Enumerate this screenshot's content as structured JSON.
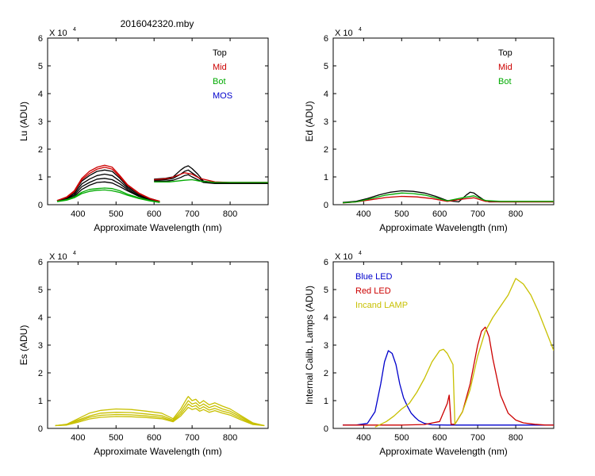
{
  "figure_title": "2016042320.mby",
  "colors": {
    "black": "#000000",
    "red": "#cc0000",
    "green": "#00aa00",
    "blue": "#0000cc",
    "olive": "#c8c000",
    "frame": "#000000"
  },
  "chart_data": [
    {
      "id": "lu",
      "type": "line",
      "ylabel": "Lu (ADU)",
      "xlabel": "Approximate Wavelength (nm)",
      "multiplier_text": "X 10",
      "multiplier_exp": "4",
      "xlim": [
        320,
        900
      ],
      "ylim": [
        0,
        6
      ],
      "xticks": [
        400,
        500,
        600,
        700,
        800
      ],
      "yticks": [
        0,
        1,
        2,
        3,
        4,
        5,
        6
      ],
      "legend_position": "top-right",
      "legend": [
        {
          "label": "Top",
          "color": "#000000"
        },
        {
          "label": "Mid",
          "color": "#cc0000"
        },
        {
          "label": "Bot",
          "color": "#00aa00"
        },
        {
          "label": "MOS",
          "color": "#0000cc"
        }
      ],
      "series": [
        {
          "name": "Top-1",
          "color": "#000000",
          "x": [
            345,
            370,
            390,
            410,
            430,
            450,
            470,
            490,
            510,
            530,
            560,
            590,
            615
          ],
          "y": [
            0.15,
            0.25,
            0.45,
            0.85,
            1.05,
            1.2,
            1.25,
            1.2,
            0.95,
            0.65,
            0.4,
            0.22,
            0.12
          ]
        },
        {
          "name": "Top-2",
          "color": "#000000",
          "x": [
            345,
            370,
            390,
            410,
            430,
            450,
            470,
            490,
            510,
            530,
            560,
            590,
            615
          ],
          "y": [
            0.14,
            0.22,
            0.4,
            0.75,
            0.92,
            1.05,
            1.1,
            1.05,
            0.85,
            0.6,
            0.36,
            0.2,
            0.11
          ]
        },
        {
          "name": "Top-3",
          "color": "#000000",
          "x": [
            345,
            370,
            390,
            410,
            430,
            450,
            470,
            490,
            510,
            530,
            560,
            590,
            615
          ],
          "y": [
            0.13,
            0.2,
            0.35,
            0.65,
            0.8,
            0.92,
            0.95,
            0.9,
            0.75,
            0.55,
            0.32,
            0.18,
            0.1
          ]
        },
        {
          "name": "Top-4",
          "color": "#000000",
          "x": [
            345,
            370,
            390,
            410,
            430,
            450,
            470,
            490,
            510,
            530,
            560,
            590,
            615
          ],
          "y": [
            0.12,
            0.18,
            0.3,
            0.55,
            0.7,
            0.8,
            0.82,
            0.78,
            0.65,
            0.5,
            0.3,
            0.16,
            0.09
          ]
        },
        {
          "name": "Top-r1",
          "color": "#000000",
          "x": [
            600,
            630,
            650,
            670,
            680,
            690,
            700,
            715,
            730,
            760,
            800,
            850,
            900
          ],
          "y": [
            0.92,
            0.95,
            1.0,
            1.25,
            1.35,
            1.4,
            1.3,
            1.1,
            0.85,
            0.8,
            0.8,
            0.8,
            0.8
          ]
        },
        {
          "name": "Top-r2",
          "color": "#000000",
          "x": [
            600,
            630,
            650,
            670,
            680,
            690,
            700,
            715,
            730,
            760,
            800,
            850,
            900
          ],
          "y": [
            0.88,
            0.9,
            0.95,
            1.1,
            1.2,
            1.25,
            1.15,
            1.0,
            0.82,
            0.78,
            0.78,
            0.78,
            0.78
          ]
        },
        {
          "name": "Top-r3",
          "color": "#000000",
          "x": [
            600,
            630,
            650,
            670,
            680,
            690,
            700,
            715,
            730,
            760,
            800,
            850,
            900
          ],
          "y": [
            0.85,
            0.85,
            0.88,
            0.98,
            1.05,
            1.08,
            1.0,
            0.9,
            0.8,
            0.76,
            0.76,
            0.76,
            0.76
          ]
        },
        {
          "name": "Mid-1",
          "color": "#cc0000",
          "x": [
            345,
            370,
            390,
            410,
            430,
            450,
            470,
            490,
            510,
            530,
            560,
            590,
            615
          ],
          "y": [
            0.15,
            0.28,
            0.5,
            0.95,
            1.2,
            1.35,
            1.42,
            1.35,
            1.05,
            0.72,
            0.42,
            0.22,
            0.12
          ]
        },
        {
          "name": "Mid-2",
          "color": "#cc0000",
          "x": [
            345,
            370,
            390,
            410,
            430,
            450,
            470,
            490,
            510,
            530,
            560,
            590,
            615
          ],
          "y": [
            0.15,
            0.26,
            0.46,
            0.9,
            1.12,
            1.28,
            1.35,
            1.28,
            1.0,
            0.7,
            0.4,
            0.21,
            0.12
          ]
        },
        {
          "name": "Mid-r",
          "color": "#cc0000",
          "x": [
            600,
            640,
            660,
            680,
            700,
            720,
            760,
            800,
            900
          ],
          "y": [
            0.9,
            0.95,
            1.05,
            1.15,
            1.1,
            0.95,
            0.82,
            0.8,
            0.8
          ]
        },
        {
          "name": "Bot-1",
          "color": "#00aa00",
          "x": [
            345,
            370,
            390,
            410,
            430,
            450,
            470,
            490,
            510,
            530,
            560,
            590,
            615
          ],
          "y": [
            0.12,
            0.18,
            0.28,
            0.45,
            0.55,
            0.58,
            0.6,
            0.58,
            0.5,
            0.38,
            0.25,
            0.15,
            0.09
          ]
        },
        {
          "name": "Bot-2",
          "color": "#00aa00",
          "x": [
            345,
            370,
            390,
            410,
            430,
            450,
            470,
            490,
            510,
            530,
            560,
            590,
            615
          ],
          "y": [
            0.11,
            0.16,
            0.25,
            0.4,
            0.48,
            0.52,
            0.53,
            0.5,
            0.44,
            0.34,
            0.22,
            0.13,
            0.08
          ]
        },
        {
          "name": "Bot-r",
          "color": "#00aa00",
          "x": [
            600,
            640,
            680,
            700,
            720,
            760,
            800,
            900
          ],
          "y": [
            0.82,
            0.82,
            0.88,
            0.9,
            0.85,
            0.8,
            0.8,
            0.8
          ]
        }
      ]
    },
    {
      "id": "ed",
      "type": "line",
      "ylabel": "Ed  (ADU)",
      "xlabel": "Approximate Wavelength (nm)",
      "multiplier_text": "X 10",
      "multiplier_exp": "4",
      "xlim": [
        320,
        900
      ],
      "ylim": [
        0,
        6
      ],
      "xticks": [
        400,
        500,
        600,
        700,
        800
      ],
      "yticks": [
        0,
        1,
        2,
        3,
        4,
        5,
        6
      ],
      "legend_position": "top-right",
      "legend": [
        {
          "label": "Top",
          "color": "#000000"
        },
        {
          "label": "Mid",
          "color": "#cc0000"
        },
        {
          "label": "Bot",
          "color": "#00aa00"
        }
      ],
      "series": [
        {
          "name": "Top",
          "color": "#000000",
          "x": [
            345,
            380,
            410,
            440,
            470,
            500,
            530,
            560,
            590,
            620,
            650,
            670,
            680,
            690,
            700,
            715,
            730,
            760,
            800,
            850,
            900
          ],
          "y": [
            0.08,
            0.12,
            0.22,
            0.35,
            0.45,
            0.5,
            0.48,
            0.42,
            0.3,
            0.15,
            0.1,
            0.35,
            0.45,
            0.42,
            0.32,
            0.18,
            0.1,
            0.1,
            0.1,
            0.1,
            0.1
          ]
        },
        {
          "name": "Mid",
          "color": "#cc0000",
          "x": [
            345,
            380,
            420,
            460,
            500,
            540,
            580,
            620,
            660,
            690,
            720,
            760,
            900
          ],
          "y": [
            0.06,
            0.1,
            0.18,
            0.26,
            0.3,
            0.28,
            0.22,
            0.12,
            0.2,
            0.25,
            0.12,
            0.1,
            0.1
          ]
        },
        {
          "name": "Bot",
          "color": "#00aa00",
          "x": [
            345,
            380,
            420,
            460,
            500,
            530,
            560,
            590,
            620,
            660,
            690,
            720,
            760,
            900
          ],
          "y": [
            0.07,
            0.1,
            0.22,
            0.35,
            0.42,
            0.4,
            0.35,
            0.25,
            0.14,
            0.25,
            0.32,
            0.15,
            0.12,
            0.12
          ]
        }
      ]
    },
    {
      "id": "es",
      "type": "line",
      "ylabel": "Es  (ADU)",
      "xlabel": "Approximate Wavelength (nm)",
      "multiplier_text": "X 10",
      "multiplier_exp": "4",
      "xlim": [
        320,
        900
      ],
      "ylim": [
        0,
        6
      ],
      "xticks": [
        400,
        500,
        600,
        700,
        800
      ],
      "yticks": [
        0,
        1,
        2,
        3,
        4,
        5,
        6
      ],
      "legend_position": "none",
      "legend": [],
      "series": [
        {
          "name": "Es-1",
          "color": "#c8c000",
          "x": [
            340,
            370,
            400,
            430,
            460,
            500,
            540,
            580,
            620,
            650,
            670,
            685,
            690,
            700,
            710,
            720,
            730,
            745,
            760,
            780,
            800,
            830,
            860,
            890
          ],
          "y": [
            0.1,
            0.15,
            0.35,
            0.55,
            0.65,
            0.7,
            0.68,
            0.62,
            0.55,
            0.35,
            0.7,
            1.05,
            1.15,
            1.0,
            1.05,
            0.9,
            1.0,
            0.85,
            0.92,
            0.8,
            0.7,
            0.45,
            0.2,
            0.1
          ]
        },
        {
          "name": "Es-2",
          "color": "#c8c000",
          "x": [
            340,
            370,
            400,
            430,
            460,
            500,
            540,
            580,
            620,
            650,
            670,
            685,
            690,
            700,
            710,
            720,
            730,
            745,
            760,
            780,
            800,
            830,
            860,
            890
          ],
          "y": [
            0.1,
            0.14,
            0.3,
            0.45,
            0.55,
            0.58,
            0.57,
            0.52,
            0.46,
            0.3,
            0.6,
            0.9,
            1.0,
            0.88,
            0.92,
            0.8,
            0.88,
            0.75,
            0.82,
            0.7,
            0.62,
            0.4,
            0.18,
            0.1
          ]
        },
        {
          "name": "Es-3",
          "color": "#c8c000",
          "x": [
            340,
            370,
            400,
            430,
            460,
            500,
            540,
            580,
            620,
            650,
            670,
            685,
            690,
            700,
            710,
            720,
            730,
            745,
            760,
            780,
            800,
            830,
            860,
            890
          ],
          "y": [
            0.1,
            0.13,
            0.26,
            0.4,
            0.47,
            0.5,
            0.49,
            0.45,
            0.4,
            0.26,
            0.52,
            0.78,
            0.88,
            0.78,
            0.82,
            0.7,
            0.78,
            0.66,
            0.72,
            0.62,
            0.55,
            0.35,
            0.16,
            0.1
          ]
        },
        {
          "name": "Es-4",
          "color": "#c8c000",
          "x": [
            340,
            370,
            400,
            430,
            460,
            500,
            540,
            580,
            620,
            650,
            670,
            685,
            690,
            700,
            710,
            720,
            730,
            745,
            760,
            780,
            800,
            830,
            860,
            890
          ],
          "y": [
            0.1,
            0.12,
            0.22,
            0.34,
            0.4,
            0.43,
            0.42,
            0.39,
            0.35,
            0.24,
            0.45,
            0.68,
            0.76,
            0.68,
            0.72,
            0.62,
            0.68,
            0.58,
            0.64,
            0.55,
            0.48,
            0.3,
            0.14,
            0.1
          ]
        }
      ]
    },
    {
      "id": "lamps",
      "type": "line",
      "ylabel": "Internal Calib. Lamps (ADU)",
      "xlabel": "Approximate Wavelength (nm)",
      "multiplier_text": "X 10",
      "multiplier_exp": "4",
      "xlim": [
        320,
        900
      ],
      "ylim": [
        0,
        6
      ],
      "xticks": [
        400,
        500,
        600,
        700,
        800
      ],
      "yticks": [
        0,
        1,
        2,
        3,
        4,
        5,
        6
      ],
      "legend_position": "top-left",
      "legend": [
        {
          "label": "Blue LED",
          "color": "#0000cc"
        },
        {
          "label": "Red LED",
          "color": "#cc0000"
        },
        {
          "label": "Incand LAMP",
          "color": "#c8c000"
        }
      ],
      "series": [
        {
          "name": "Blue LED",
          "color": "#0000cc",
          "x": [
            345,
            380,
            410,
            430,
            445,
            455,
            465,
            475,
            485,
            495,
            505,
            515,
            525,
            535,
            545,
            560,
            580,
            620,
            700,
            800,
            900
          ],
          "y": [
            0.12,
            0.12,
            0.18,
            0.6,
            1.6,
            2.4,
            2.8,
            2.7,
            2.3,
            1.6,
            1.1,
            0.8,
            0.55,
            0.4,
            0.28,
            0.18,
            0.13,
            0.12,
            0.12,
            0.12,
            0.12
          ]
        },
        {
          "name": "Red LED",
          "color": "#cc0000",
          "x": [
            345,
            500,
            560,
            600,
            620,
            625,
            630,
            640,
            660,
            680,
            700,
            710,
            720,
            730,
            740,
            760,
            780,
            800,
            820,
            850,
            880,
            900
          ],
          "y": [
            0.12,
            0.12,
            0.14,
            0.25,
            0.9,
            1.2,
            0.15,
            0.15,
            0.6,
            1.6,
            3.0,
            3.5,
            3.65,
            3.3,
            2.5,
            1.2,
            0.55,
            0.3,
            0.2,
            0.15,
            0.12,
            0.12
          ]
        },
        {
          "name": "Incand LAMP",
          "color": "#c8c000",
          "x": [
            430,
            460,
            480,
            500,
            520,
            540,
            560,
            580,
            600,
            610,
            620,
            635,
            640,
            660,
            680,
            700,
            720,
            740,
            760,
            780,
            800,
            820,
            840,
            860,
            880,
            900
          ],
          "y": [
            0.05,
            0.25,
            0.45,
            0.7,
            0.9,
            1.3,
            1.8,
            2.4,
            2.8,
            2.85,
            2.7,
            2.3,
            0.15,
            0.6,
            1.4,
            2.6,
            3.5,
            4.0,
            4.4,
            4.8,
            5.4,
            5.2,
            4.8,
            4.2,
            3.5,
            2.8
          ]
        }
      ]
    }
  ]
}
